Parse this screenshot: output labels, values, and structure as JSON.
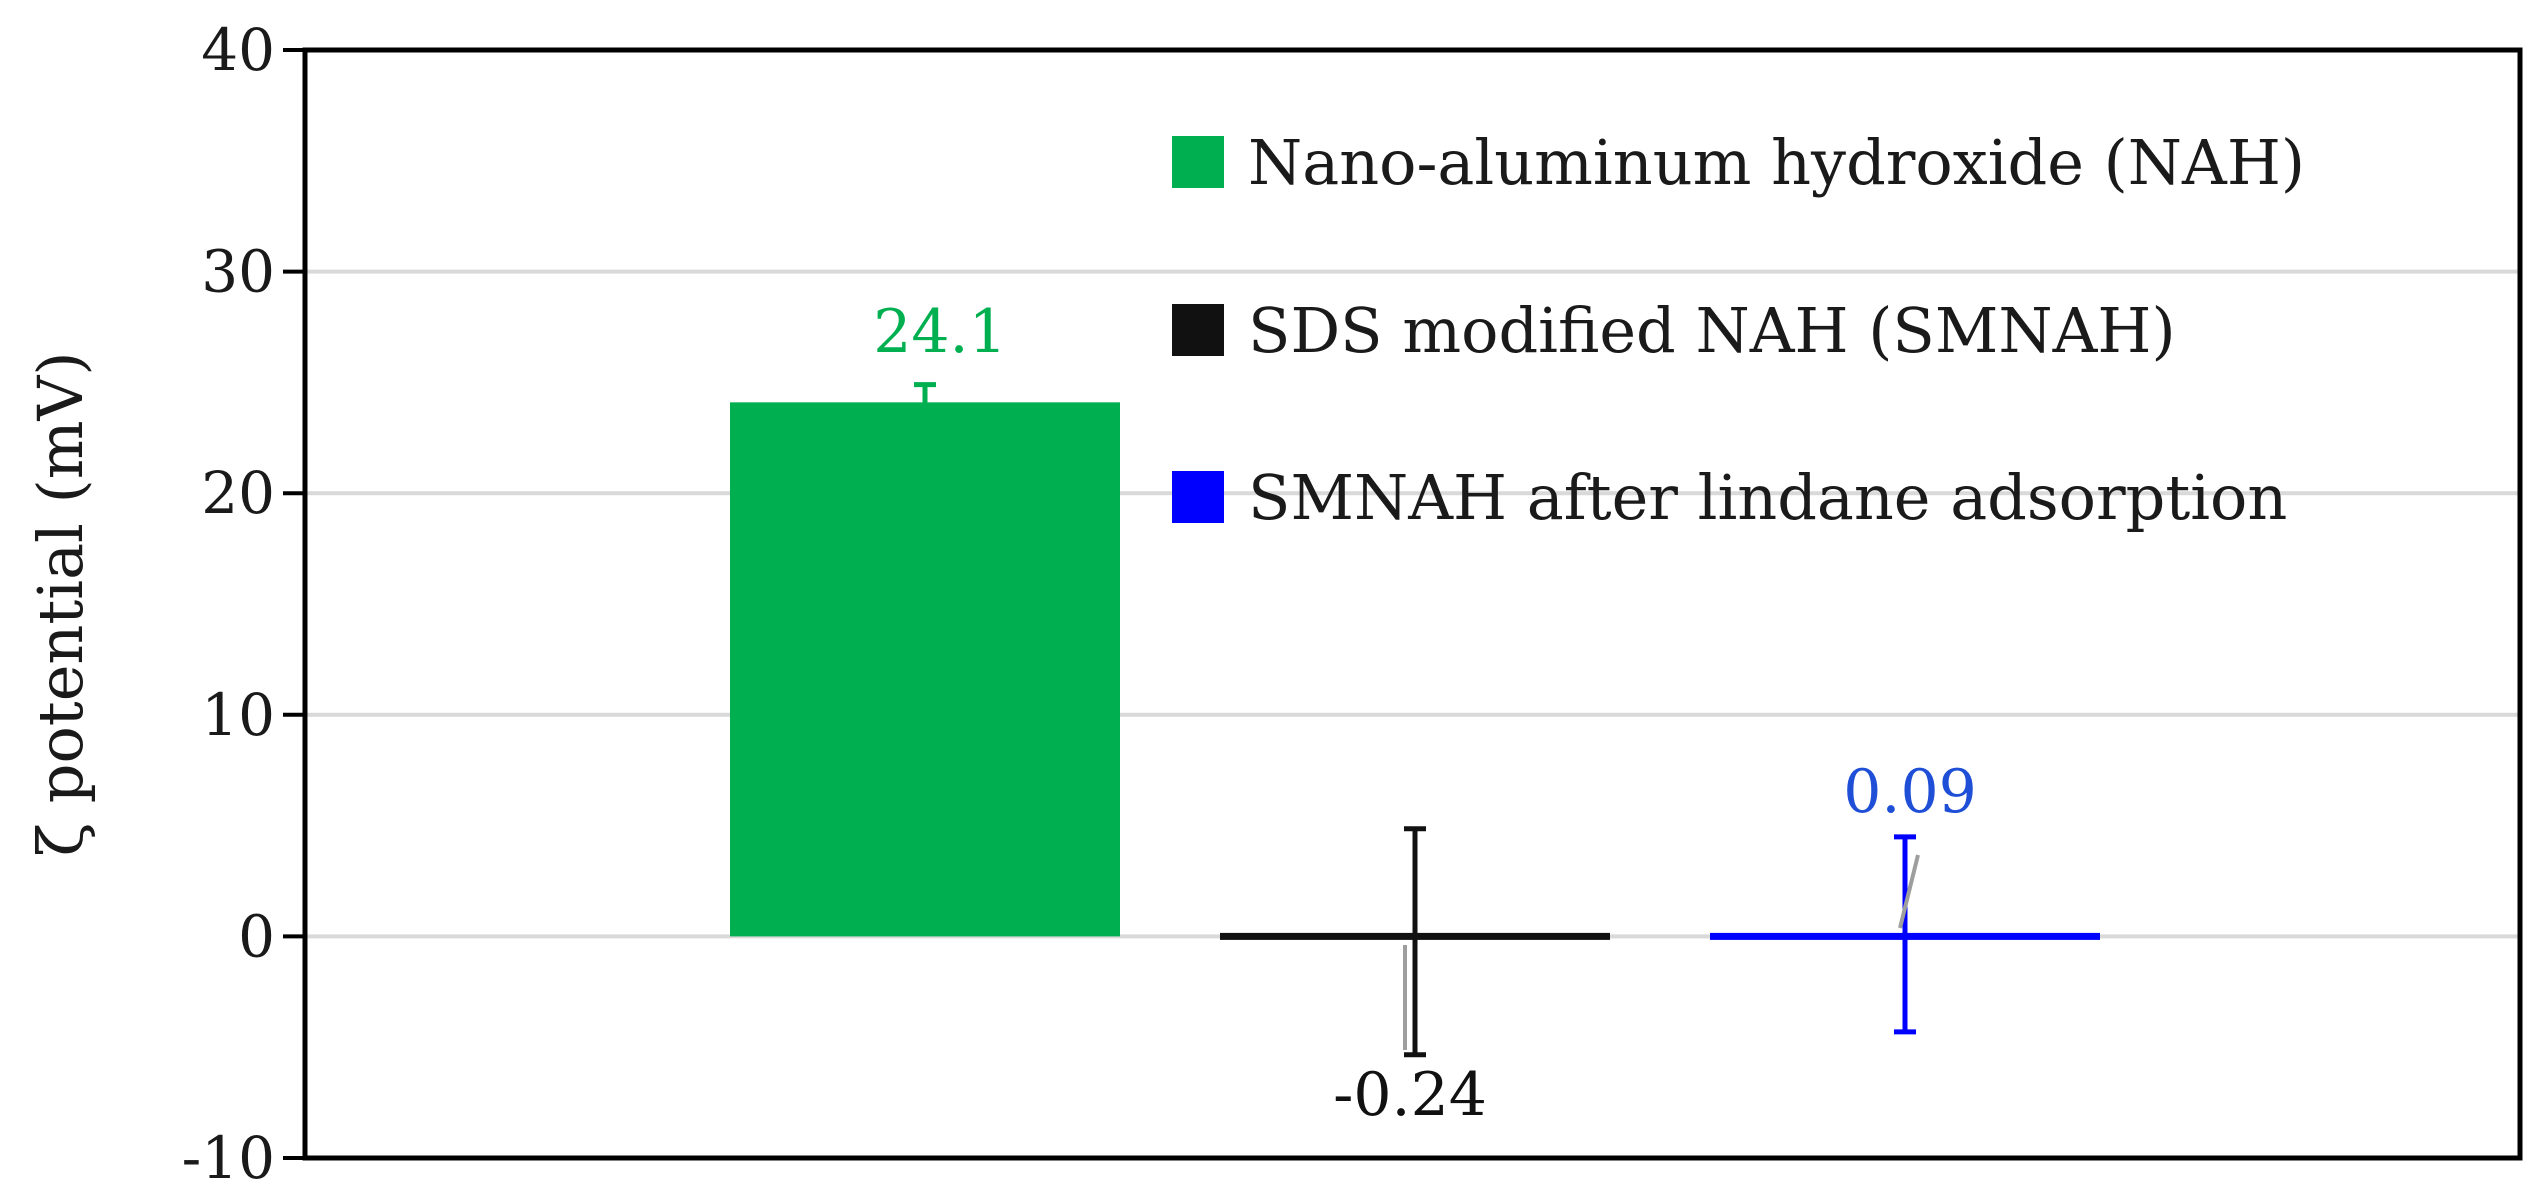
{
  "chart_data": {
    "type": "bar",
    "title": "",
    "xlabel": "",
    "ylabel": "ζ potential (mV)",
    "ylim": [
      -10,
      40
    ],
    "yticks": [
      -10,
      0,
      10,
      20,
      30,
      40
    ],
    "grid": true,
    "legend_position": "top-right",
    "series": [
      {
        "name": "Nano-aluminum hydroxide (NAH)",
        "value": 24.1,
        "error": 0.8,
        "label": "24.1",
        "color": "#00b050",
        "label_color": "#00b050"
      },
      {
        "name": "SDS modified NAH (SMNAH)",
        "value": -0.24,
        "error": 5.1,
        "label": "-0.24",
        "color": "#111111",
        "label_color": "#111111"
      },
      {
        "name": "SMNAH after lindane adsorption",
        "value": 0.09,
        "error": 4.4,
        "label": "0.09",
        "color": "#0000ff",
        "label_color": "#1f4fd6"
      }
    ]
  }
}
